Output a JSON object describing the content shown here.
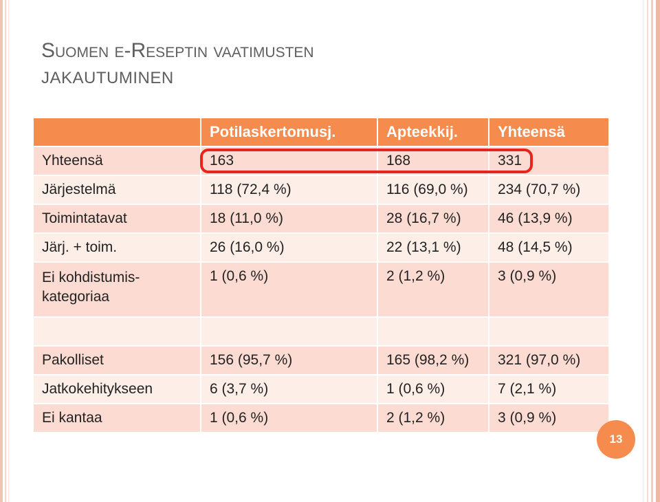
{
  "title": {
    "line1": "Suomen e-Reseptin vaatimusten",
    "line2": "jakautuminen"
  },
  "table": {
    "header": [
      "",
      "Potilaskertomusj.",
      "Apteekkij.",
      "Yhteensä"
    ],
    "rows": [
      [
        "Yhteensä",
        "163",
        "168",
        "331"
      ],
      [
        "Järjestelmä",
        "118 (72,4 %)",
        "116 (69,0 %)",
        "234 (70,7 %)"
      ],
      [
        "Toimintatavat",
        "18 (11,0 %)",
        "28 (16,7 %)",
        "46 (13,9 %)"
      ],
      [
        "Järj. + toim.",
        "26 (16,0 %)",
        "22 (13,1 %)",
        "48 (14,5 %)"
      ],
      [
        "Ei kohdistumis-kategoriaa",
        "1  (0,6 %)",
        "2 (1,2 %)",
        "3 (0,9 %)"
      ],
      [
        "",
        "",
        "",
        ""
      ],
      [
        "Pakolliset",
        "156 (95,7 %)",
        "165 (98,2 %)",
        "321 (97,0 %)"
      ],
      [
        "Jatkokehitykseen",
        "6 (3,7 %)",
        "1 (0,6 %)",
        "7 (2,1 %)"
      ],
      [
        "Ei kantaa",
        "1 (0,6 %)",
        "2 (1,2 %)",
        "3 (0,9 %)"
      ]
    ]
  },
  "page_number": "13",
  "colors": {
    "header": "#f68b4e",
    "row_dark": "#fcdcd2",
    "row_light": "#fdeee8",
    "highlight": "#e8241f"
  }
}
